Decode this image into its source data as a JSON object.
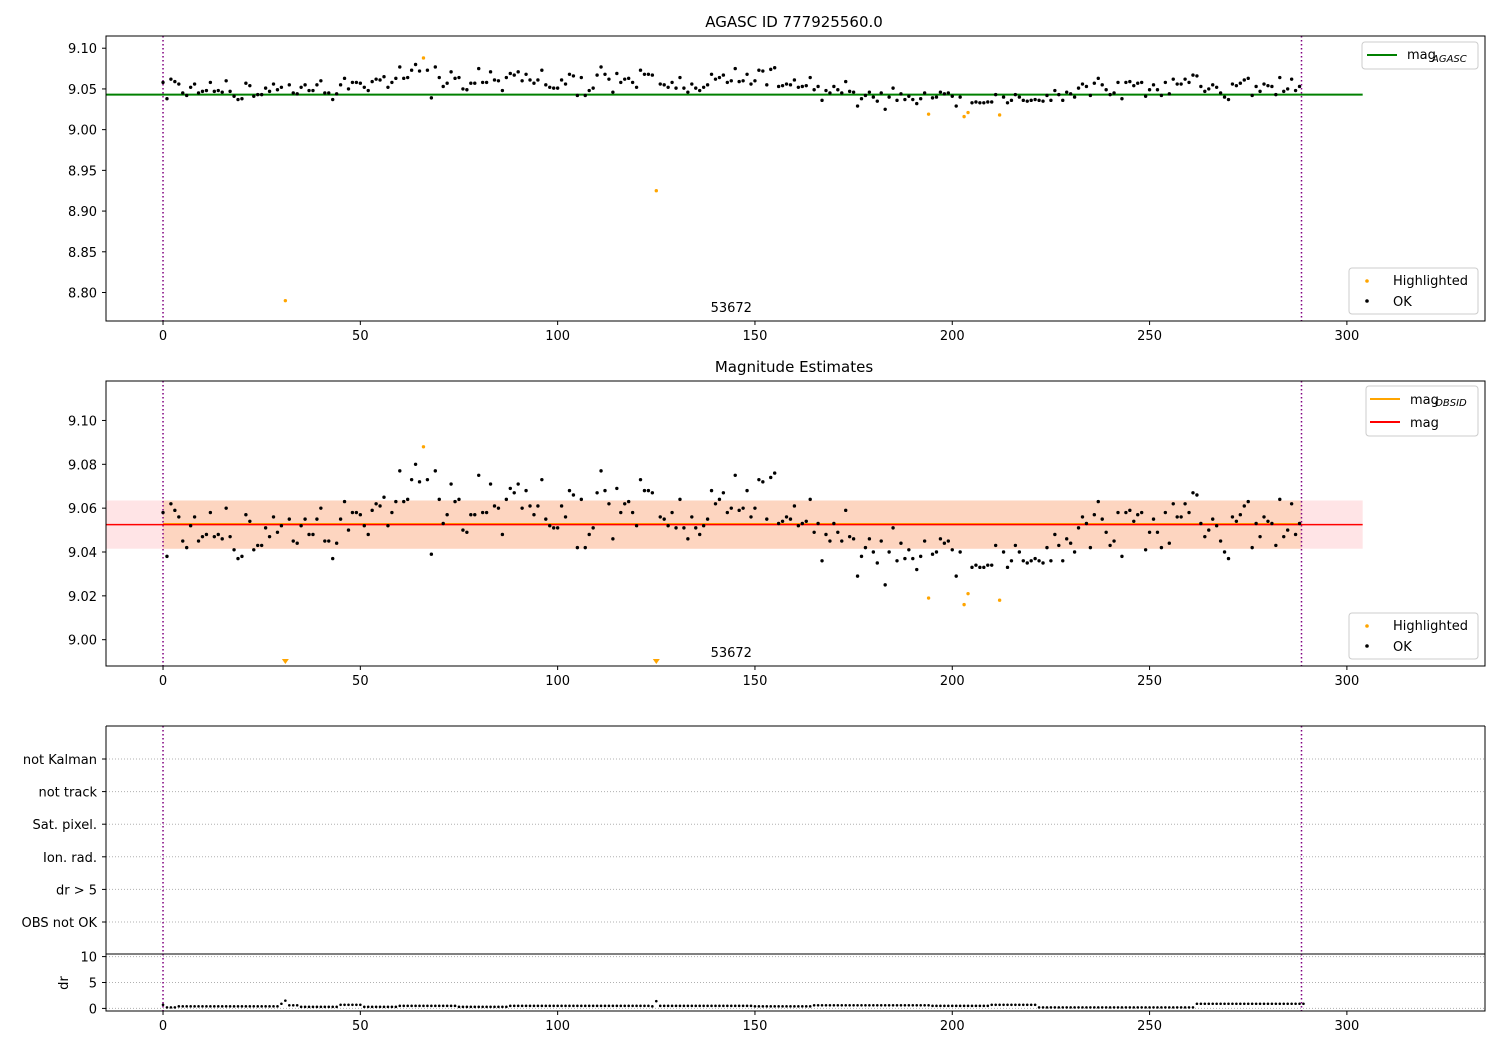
{
  "chart_data": [
    {
      "type": "scatter",
      "title": "AGASC ID 777925560.0",
      "xlim": [
        -14.45,
        335
      ],
      "ylim": [
        8.765,
        9.115
      ],
      "x_ticks": [
        0,
        50,
        100,
        150,
        200,
        250,
        300
      ],
      "y_ticks": [
        8.8,
        8.85,
        8.9,
        8.95,
        9.0,
        9.05,
        9.1
      ],
      "y_tick_labels": [
        "8.80",
        "8.85",
        "8.90",
        "8.95",
        "9.00",
        "9.05",
        "9.10"
      ],
      "vlines": [
        0,
        288.5
      ],
      "obsid_label": {
        "x": 144,
        "text": "53672"
      },
      "hline": {
        "name": "magAGASC",
        "label_main": "mag",
        "label_sub": "AGASC",
        "y": 9.043,
        "x": [
          -14.45,
          304
        ],
        "color": "#008000"
      },
      "legend_top": [
        {
          "name": "magAGASC",
          "main": "mag",
          "sub": "AGASC",
          "color": "#008000"
        }
      ],
      "legend_bottom": [
        {
          "name": "Highlighted",
          "color": "#FFA500"
        },
        {
          "name": "OK",
          "color": "#000000"
        }
      ],
      "series_highlighted": [
        [
          31,
          8.79
        ],
        [
          66,
          9.088
        ],
        [
          125,
          8.925
        ],
        [
          194,
          9.019
        ],
        [
          203,
          9.016
        ],
        [
          204,
          9.021
        ],
        [
          212,
          9.018
        ]
      ]
    },
    {
      "type": "scatter",
      "title": "Magnitude Estimates",
      "xlim": [
        -14.45,
        335
      ],
      "ylim": [
        8.988,
        9.118
      ],
      "x_ticks": [
        0,
        50,
        100,
        150,
        200,
        250,
        300
      ],
      "y_ticks": [
        9.0,
        9.02,
        9.04,
        9.06,
        9.08,
        9.1
      ],
      "y_tick_labels": [
        "9.00",
        "9.02",
        "9.04",
        "9.06",
        "9.08",
        "9.10"
      ],
      "vlines": [
        0,
        288.5
      ],
      "obsid_label": {
        "x": 144,
        "text": "53672"
      },
      "band_mag": {
        "y0": 9.0415,
        "y1": 9.0635,
        "x": [
          -14.45,
          304
        ]
      },
      "band_obsid": {
        "y0": 9.0415,
        "y1": 9.0635,
        "x": [
          0,
          288.5
        ]
      },
      "line_obsid": {
        "y": 9.0528,
        "x": [
          0,
          288.5
        ],
        "color": "#FFA500"
      },
      "line_mag": {
        "y": 9.0525,
        "x": [
          -14.45,
          304
        ],
        "color": "#FF0000"
      },
      "legend_top": [
        {
          "name": "magOBSID",
          "main": "mag",
          "sub": "OBSID",
          "color": "#FFA500"
        },
        {
          "name": "mag",
          "main": "mag",
          "sub": "",
          "color": "#FF0000"
        }
      ],
      "legend_bottom": [
        {
          "name": "Highlighted",
          "color": "#FFA500"
        },
        {
          "name": "OK",
          "color": "#000000"
        }
      ],
      "series_highlighted": [
        [
          66,
          9.088
        ],
        [
          194,
          9.019
        ],
        [
          203,
          9.016
        ],
        [
          204,
          9.021
        ],
        [
          212,
          9.018
        ]
      ],
      "offscale_markers": [
        31,
        125
      ]
    },
    {
      "type": "scatter",
      "title": "",
      "xlim": [
        -14.45,
        335
      ],
      "flag_labels": [
        "not Kalman",
        "not track",
        "Sat. pixel.",
        "Ion. rad.",
        "dr > 5",
        "OBS not OK"
      ],
      "vlines": [
        0,
        288.5
      ]
    },
    {
      "type": "scatter",
      "title": "",
      "ylabel": "dr",
      "xlim": [
        -14.45,
        335
      ],
      "ylim": [
        -0.5,
        10.5
      ],
      "x_ticks": [
        0,
        50,
        100,
        150,
        200,
        250,
        300
      ],
      "y_ticks": [
        0,
        5,
        10
      ],
      "y_tick_labels": [
        "0",
        "5",
        "10"
      ],
      "vlines": [
        0,
        288.5
      ],
      "series_dr_segments": [
        [
          0,
          0.7
        ],
        [
          1,
          0.2
        ],
        [
          4,
          0.4
        ],
        [
          30,
          0.9
        ],
        [
          31,
          1.5
        ],
        [
          32,
          0.6
        ],
        [
          35,
          0.3
        ],
        [
          45,
          0.7
        ],
        [
          51,
          0.3
        ],
        [
          60,
          0.5
        ],
        [
          75,
          0.3
        ],
        [
          88,
          0.5
        ],
        [
          124,
          0.4
        ],
        [
          125,
          1.4
        ],
        [
          126,
          0.5
        ],
        [
          150,
          0.4
        ],
        [
          165,
          0.6
        ],
        [
          195,
          0.5
        ],
        [
          210,
          0.7
        ],
        [
          222,
          0.2
        ],
        [
          262,
          0.9
        ],
        [
          270,
          0.9
        ],
        [
          289,
          0.9
        ]
      ]
    }
  ],
  "mag_series": [
    [
      0,
      9.058
    ],
    [
      1,
      9.038
    ],
    [
      2,
      9.062
    ],
    [
      3,
      9.059
    ],
    [
      4,
      9.056
    ],
    [
      5,
      9.045
    ],
    [
      6,
      9.042
    ],
    [
      7,
      9.052
    ],
    [
      8,
      9.056
    ],
    [
      9,
      9.045
    ],
    [
      10,
      9.047
    ],
    [
      11,
      9.048
    ],
    [
      12,
      9.058
    ],
    [
      13,
      9.047
    ],
    [
      14,
      9.048
    ],
    [
      15,
      9.046
    ],
    [
      16,
      9.06
    ],
    [
      17,
      9.047
    ],
    [
      18,
      9.041
    ],
    [
      19,
      9.037
    ],
    [
      20,
      9.038
    ],
    [
      21,
      9.057
    ],
    [
      22,
      9.054
    ],
    [
      23,
      9.041
    ],
    [
      24,
      9.043
    ],
    [
      25,
      9.043
    ],
    [
      26,
      9.051
    ],
    [
      27,
      9.047
    ],
    [
      28,
      9.056
    ],
    [
      29,
      9.049
    ],
    [
      30,
      9.052
    ],
    [
      32,
      9.055
    ],
    [
      33,
      9.045
    ],
    [
      34,
      9.044
    ],
    [
      35,
      9.052
    ],
    [
      36,
      9.055
    ],
    [
      37,
      9.048
    ],
    [
      38,
      9.048
    ],
    [
      39,
      9.055
    ],
    [
      40,
      9.06
    ],
    [
      41,
      9.045
    ],
    [
      42,
      9.045
    ],
    [
      43,
      9.037
    ],
    [
      44,
      9.044
    ],
    [
      45,
      9.055
    ],
    [
      46,
      9.063
    ],
    [
      47,
      9.05
    ],
    [
      48,
      9.058
    ],
    [
      49,
      9.058
    ],
    [
      50,
      9.057
    ],
    [
      51,
      9.052
    ],
    [
      52,
      9.048
    ],
    [
      53,
      9.059
    ],
    [
      54,
      9.062
    ],
    [
      55,
      9.061
    ],
    [
      56,
      9.065
    ],
    [
      57,
      9.052
    ],
    [
      58,
      9.058
    ],
    [
      59,
      9.063
    ],
    [
      60,
      9.077
    ],
    [
      61,
      9.063
    ],
    [
      62,
      9.064
    ],
    [
      63,
      9.073
    ],
    [
      64,
      9.08
    ],
    [
      65,
      9.072
    ],
    [
      67,
      9.073
    ],
    [
      68,
      9.039
    ],
    [
      69,
      9.077
    ],
    [
      70,
      9.064
    ],
    [
      71,
      9.053
    ],
    [
      72,
      9.057
    ],
    [
      73,
      9.071
    ],
    [
      74,
      9.063
    ],
    [
      75,
      9.064
    ],
    [
      76,
      9.05
    ],
    [
      77,
      9.049
    ],
    [
      78,
      9.057
    ],
    [
      79,
      9.057
    ],
    [
      80,
      9.075
    ],
    [
      81,
      9.058
    ],
    [
      82,
      9.058
    ],
    [
      83,
      9.071
    ],
    [
      84,
      9.061
    ],
    [
      85,
      9.06
    ],
    [
      86,
      9.048
    ],
    [
      87,
      9.064
    ],
    [
      88,
      9.069
    ],
    [
      89,
      9.067
    ],
    [
      90,
      9.071
    ],
    [
      91,
      9.06
    ],
    [
      92,
      9.068
    ],
    [
      93,
      9.061
    ],
    [
      94,
      9.057
    ],
    [
      95,
      9.061
    ],
    [
      96,
      9.073
    ],
    [
      97,
      9.055
    ],
    [
      98,
      9.052
    ],
    [
      99,
      9.051
    ],
    [
      100,
      9.051
    ],
    [
      101,
      9.061
    ],
    [
      102,
      9.056
    ],
    [
      103,
      9.068
    ],
    [
      104,
      9.066
    ],
    [
      105,
      9.042
    ],
    [
      106,
      9.064
    ],
    [
      107,
      9.042
    ],
    [
      108,
      9.048
    ],
    [
      109,
      9.051
    ],
    [
      110,
      9.067
    ],
    [
      111,
      9.077
    ],
    [
      112,
      9.068
    ],
    [
      113,
      9.062
    ],
    [
      114,
      9.046
    ],
    [
      115,
      9.069
    ],
    [
      116,
      9.058
    ],
    [
      117,
      9.062
    ],
    [
      118,
      9.063
    ],
    [
      119,
      9.058
    ],
    [
      120,
      9.052
    ],
    [
      121,
      9.073
    ],
    [
      122,
      9.068
    ],
    [
      123,
      9.068
    ],
    [
      124,
      9.067
    ],
    [
      126,
      9.056
    ],
    [
      127,
      9.055
    ],
    [
      128,
      9.052
    ],
    [
      129,
      9.058
    ],
    [
      130,
      9.051
    ],
    [
      131,
      9.064
    ],
    [
      132,
      9.051
    ],
    [
      133,
      9.046
    ],
    [
      134,
      9.056
    ],
    [
      135,
      9.051
    ],
    [
      136,
      9.048
    ],
    [
      137,
      9.052
    ],
    [
      138,
      9.055
    ],
    [
      139,
      9.068
    ],
    [
      140,
      9.062
    ],
    [
      141,
      9.064
    ],
    [
      142,
      9.067
    ],
    [
      143,
      9.058
    ],
    [
      144,
      9.06
    ],
    [
      145,
      9.075
    ],
    [
      146,
      9.059
    ],
    [
      147,
      9.06
    ],
    [
      148,
      9.068
    ],
    [
      149,
      9.056
    ],
    [
      150,
      9.06
    ],
    [
      151,
      9.073
    ],
    [
      152,
      9.072
    ],
    [
      153,
      9.055
    ],
    [
      154,
      9.074
    ],
    [
      155,
      9.076
    ],
    [
      156,
      9.053
    ],
    [
      157,
      9.054
    ],
    [
      158,
      9.056
    ],
    [
      159,
      9.055
    ],
    [
      160,
      9.061
    ],
    [
      161,
      9.052
    ],
    [
      162,
      9.053
    ],
    [
      163,
      9.054
    ],
    [
      164,
      9.064
    ],
    [
      165,
      9.049
    ],
    [
      166,
      9.053
    ],
    [
      167,
      9.036
    ],
    [
      168,
      9.048
    ],
    [
      169,
      9.045
    ],
    [
      170,
      9.053
    ],
    [
      171,
      9.049
    ],
    [
      172,
      9.045
    ],
    [
      173,
      9.059
    ],
    [
      174,
      9.047
    ],
    [
      175,
      9.046
    ],
    [
      176,
      9.029
    ],
    [
      177,
      9.038
    ],
    [
      178,
      9.042
    ],
    [
      179,
      9.046
    ],
    [
      180,
      9.04
    ],
    [
      181,
      9.035
    ],
    [
      182,
      9.045
    ],
    [
      183,
      9.025
    ],
    [
      184,
      9.04
    ],
    [
      185,
      9.051
    ],
    [
      186,
      9.036
    ],
    [
      187,
      9.044
    ],
    [
      188,
      9.037
    ],
    [
      189,
      9.041
    ],
    [
      190,
      9.037
    ],
    [
      191,
      9.032
    ],
    [
      192,
      9.038
    ],
    [
      193,
      9.045
    ],
    [
      195,
      9.039
    ],
    [
      196,
      9.04
    ],
    [
      197,
      9.046
    ],
    [
      198,
      9.044
    ],
    [
      199,
      9.045
    ],
    [
      200,
      9.041
    ],
    [
      201,
      9.029
    ],
    [
      202,
      9.04
    ],
    [
      205,
      9.033
    ],
    [
      206,
      9.034
    ],
    [
      207,
      9.033
    ],
    [
      208,
      9.033
    ],
    [
      209,
      9.034
    ],
    [
      210,
      9.034
    ],
    [
      211,
      9.043
    ],
    [
      213,
      9.04
    ],
    [
      214,
      9.033
    ],
    [
      215,
      9.036
    ],
    [
      216,
      9.043
    ],
    [
      217,
      9.04
    ],
    [
      218,
      9.036
    ],
    [
      219,
      9.035
    ],
    [
      220,
      9.036
    ],
    [
      221,
      9.037
    ],
    [
      222,
      9.036
    ],
    [
      223,
      9.035
    ],
    [
      224,
      9.042
    ],
    [
      225,
      9.036
    ],
    [
      226,
      9.048
    ],
    [
      227,
      9.043
    ],
    [
      228,
      9.036
    ],
    [
      229,
      9.046
    ],
    [
      230,
      9.044
    ],
    [
      231,
      9.04
    ],
    [
      232,
      9.051
    ],
    [
      233,
      9.056
    ],
    [
      234,
      9.053
    ],
    [
      235,
      9.042
    ],
    [
      236,
      9.057
    ],
    [
      237,
      9.063
    ],
    [
      238,
      9.055
    ],
    [
      239,
      9.049
    ],
    [
      240,
      9.043
    ],
    [
      241,
      9.045
    ],
    [
      242,
      9.058
    ],
    [
      243,
      9.038
    ],
    [
      244,
      9.058
    ],
    [
      245,
      9.059
    ],
    [
      246,
      9.054
    ],
    [
      247,
      9.057
    ],
    [
      248,
      9.058
    ],
    [
      249,
      9.041
    ],
    [
      250,
      9.049
    ],
    [
      251,
      9.055
    ],
    [
      252,
      9.049
    ],
    [
      253,
      9.042
    ],
    [
      254,
      9.058
    ],
    [
      255,
      9.044
    ],
    [
      256,
      9.062
    ],
    [
      257,
      9.056
    ],
    [
      258,
      9.056
    ],
    [
      259,
      9.062
    ],
    [
      260,
      9.058
    ],
    [
      261,
      9.067
    ],
    [
      262,
      9.066
    ],
    [
      263,
      9.053
    ],
    [
      264,
      9.047
    ],
    [
      265,
      9.05
    ],
    [
      266,
      9.055
    ],
    [
      267,
      9.052
    ],
    [
      268,
      9.045
    ],
    [
      269,
      9.04
    ],
    [
      270,
      9.037
    ],
    [
      271,
      9.056
    ],
    [
      272,
      9.054
    ],
    [
      273,
      9.057
    ],
    [
      274,
      9.061
    ],
    [
      275,
      9.063
    ],
    [
      276,
      9.042
    ],
    [
      277,
      9.053
    ],
    [
      278,
      9.047
    ],
    [
      279,
      9.056
    ],
    [
      280,
      9.054
    ],
    [
      281,
      9.053
    ],
    [
      282,
      9.043
    ],
    [
      283,
      9.064
    ],
    [
      284,
      9.047
    ],
    [
      285,
      9.05
    ],
    [
      286,
      9.062
    ],
    [
      287,
      9.048
    ],
    [
      288,
      9.053
    ]
  ],
  "style": {
    "ok_color": "#000000",
    "highlight_color": "#FFA500",
    "vline_color": "#800080",
    "band_mag_color": "#FFE4E6",
    "band_obsid_color": "#FDD5C0"
  }
}
